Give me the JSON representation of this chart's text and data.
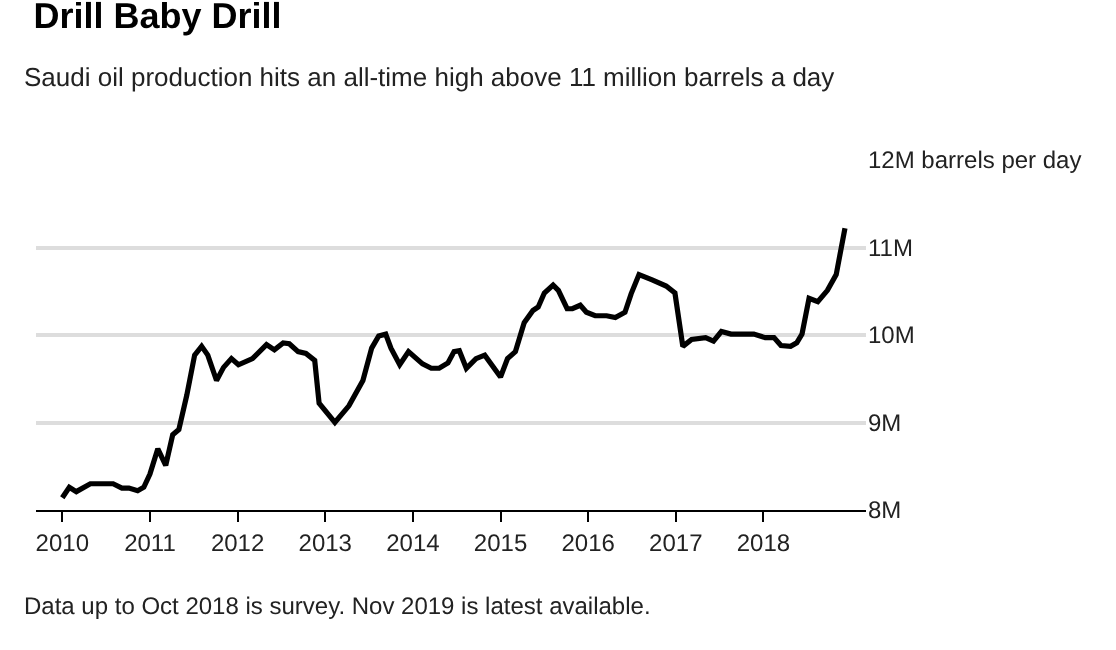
{
  "chart_data": {
    "type": "line",
    "title": "Drill Baby Drill",
    "subtitle": "Saudi oil production hits an all-time high above 11 million barrels a day",
    "x": [
      2010.0,
      2010.08,
      2010.16,
      2010.32,
      2010.58,
      2010.68,
      2010.76,
      2010.86,
      2010.93,
      2011.0,
      2011.09,
      2011.18,
      2011.26,
      2011.33,
      2011.42,
      2011.51,
      2011.59,
      2011.66,
      2011.76,
      2011.84,
      2011.93,
      2012.01,
      2012.17,
      2012.33,
      2012.42,
      2012.52,
      2012.59,
      2012.69,
      2012.78,
      2012.88,
      2012.93,
      2013.11,
      2013.27,
      2013.43,
      2013.53,
      2013.61,
      2013.69,
      2013.75,
      2013.85,
      2013.95,
      2014.11,
      2014.21,
      2014.3,
      2014.4,
      2014.47,
      2014.53,
      2014.61,
      2014.72,
      2014.82,
      2015.0,
      2015.08,
      2015.17,
      2015.27,
      2015.37,
      2015.43,
      2015.5,
      2015.6,
      2015.66,
      2015.76,
      2015.82,
      2015.91,
      2015.98,
      2016.08,
      2016.21,
      2016.31,
      2016.42,
      2016.49,
      2016.58,
      2016.73,
      2016.89,
      2016.99,
      2017.08,
      2017.18,
      2017.34,
      2017.43,
      2017.52,
      2017.63,
      2017.89,
      2018.02,
      2018.12,
      2018.2,
      2018.31,
      2018.38,
      2018.44,
      2018.52,
      2018.62,
      2018.73,
      2018.83,
      2018.93
    ],
    "series": [
      {
        "color": "#000000",
        "values": [
          8.14,
          8.26,
          8.21,
          8.3,
          8.3,
          8.25,
          8.25,
          8.22,
          8.26,
          8.41,
          8.7,
          8.51,
          8.86,
          8.92,
          9.31,
          9.77,
          9.87,
          9.77,
          9.48,
          9.63,
          9.73,
          9.66,
          9.73,
          9.89,
          9.83,
          9.91,
          9.9,
          9.81,
          9.79,
          9.71,
          9.22,
          9.0,
          9.19,
          9.48,
          9.85,
          9.99,
          10.01,
          9.85,
          9.66,
          9.81,
          9.67,
          9.62,
          9.62,
          9.68,
          9.81,
          9.82,
          9.62,
          9.73,
          9.77,
          9.52,
          9.73,
          9.81,
          10.14,
          10.28,
          10.32,
          10.48,
          10.57,
          10.51,
          10.3,
          10.3,
          10.34,
          10.26,
          10.22,
          10.22,
          10.2,
          10.26,
          10.47,
          10.69,
          10.63,
          10.56,
          10.48,
          9.87,
          9.95,
          9.97,
          9.93,
          10.04,
          10.01,
          10.01,
          9.97,
          9.97,
          9.88,
          9.87,
          9.91,
          10.01,
          10.42,
          10.38,
          10.51,
          10.69,
          11.22
        ]
      }
    ],
    "xlim": [
      2009.7,
      2019.17
    ],
    "xticks": [
      2010,
      2011,
      2012,
      2013,
      2014,
      2015,
      2016,
      2017,
      2018
    ],
    "ylim": [
      8,
      12
    ],
    "yticks": [
      {
        "value": 8,
        "label": "8M"
      },
      {
        "value": 9,
        "label": "9M"
      },
      {
        "value": 10,
        "label": "10M"
      },
      {
        "value": 11,
        "label": "11M"
      },
      {
        "value": 12,
        "label": "12M barrels per day"
      }
    ],
    "grid": "y",
    "legend": false,
    "marker": "none",
    "line_style": "solid",
    "annotations": [
      "Data up to Oct 2018 is survey. Nov 2019 is latest available."
    ]
  }
}
